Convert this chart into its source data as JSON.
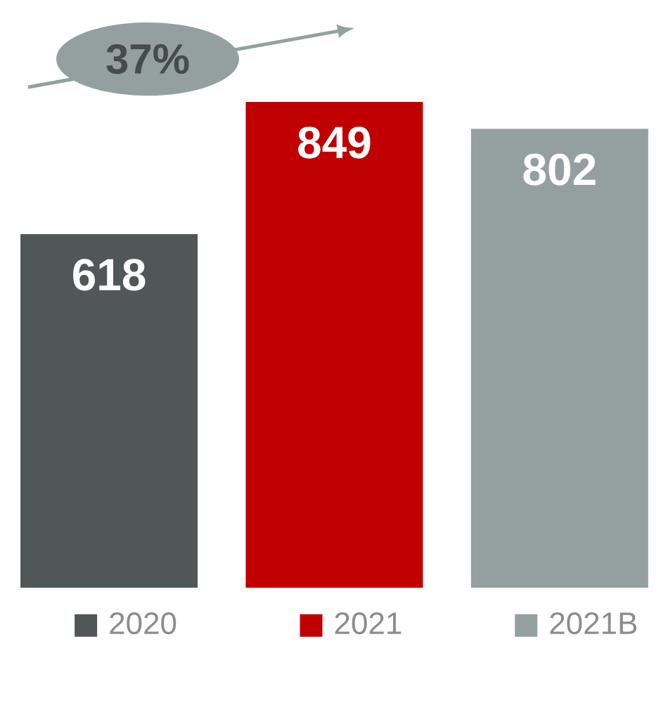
{
  "chart_data": {
    "type": "bar",
    "categories": [
      "2020",
      "2021",
      "2021B"
    ],
    "values": [
      618,
      849,
      802
    ],
    "colors": [
      "#515757",
      "#c00000",
      "#94a09f"
    ],
    "data_labels": true,
    "annotations": [
      "37%"
    ]
  }
}
